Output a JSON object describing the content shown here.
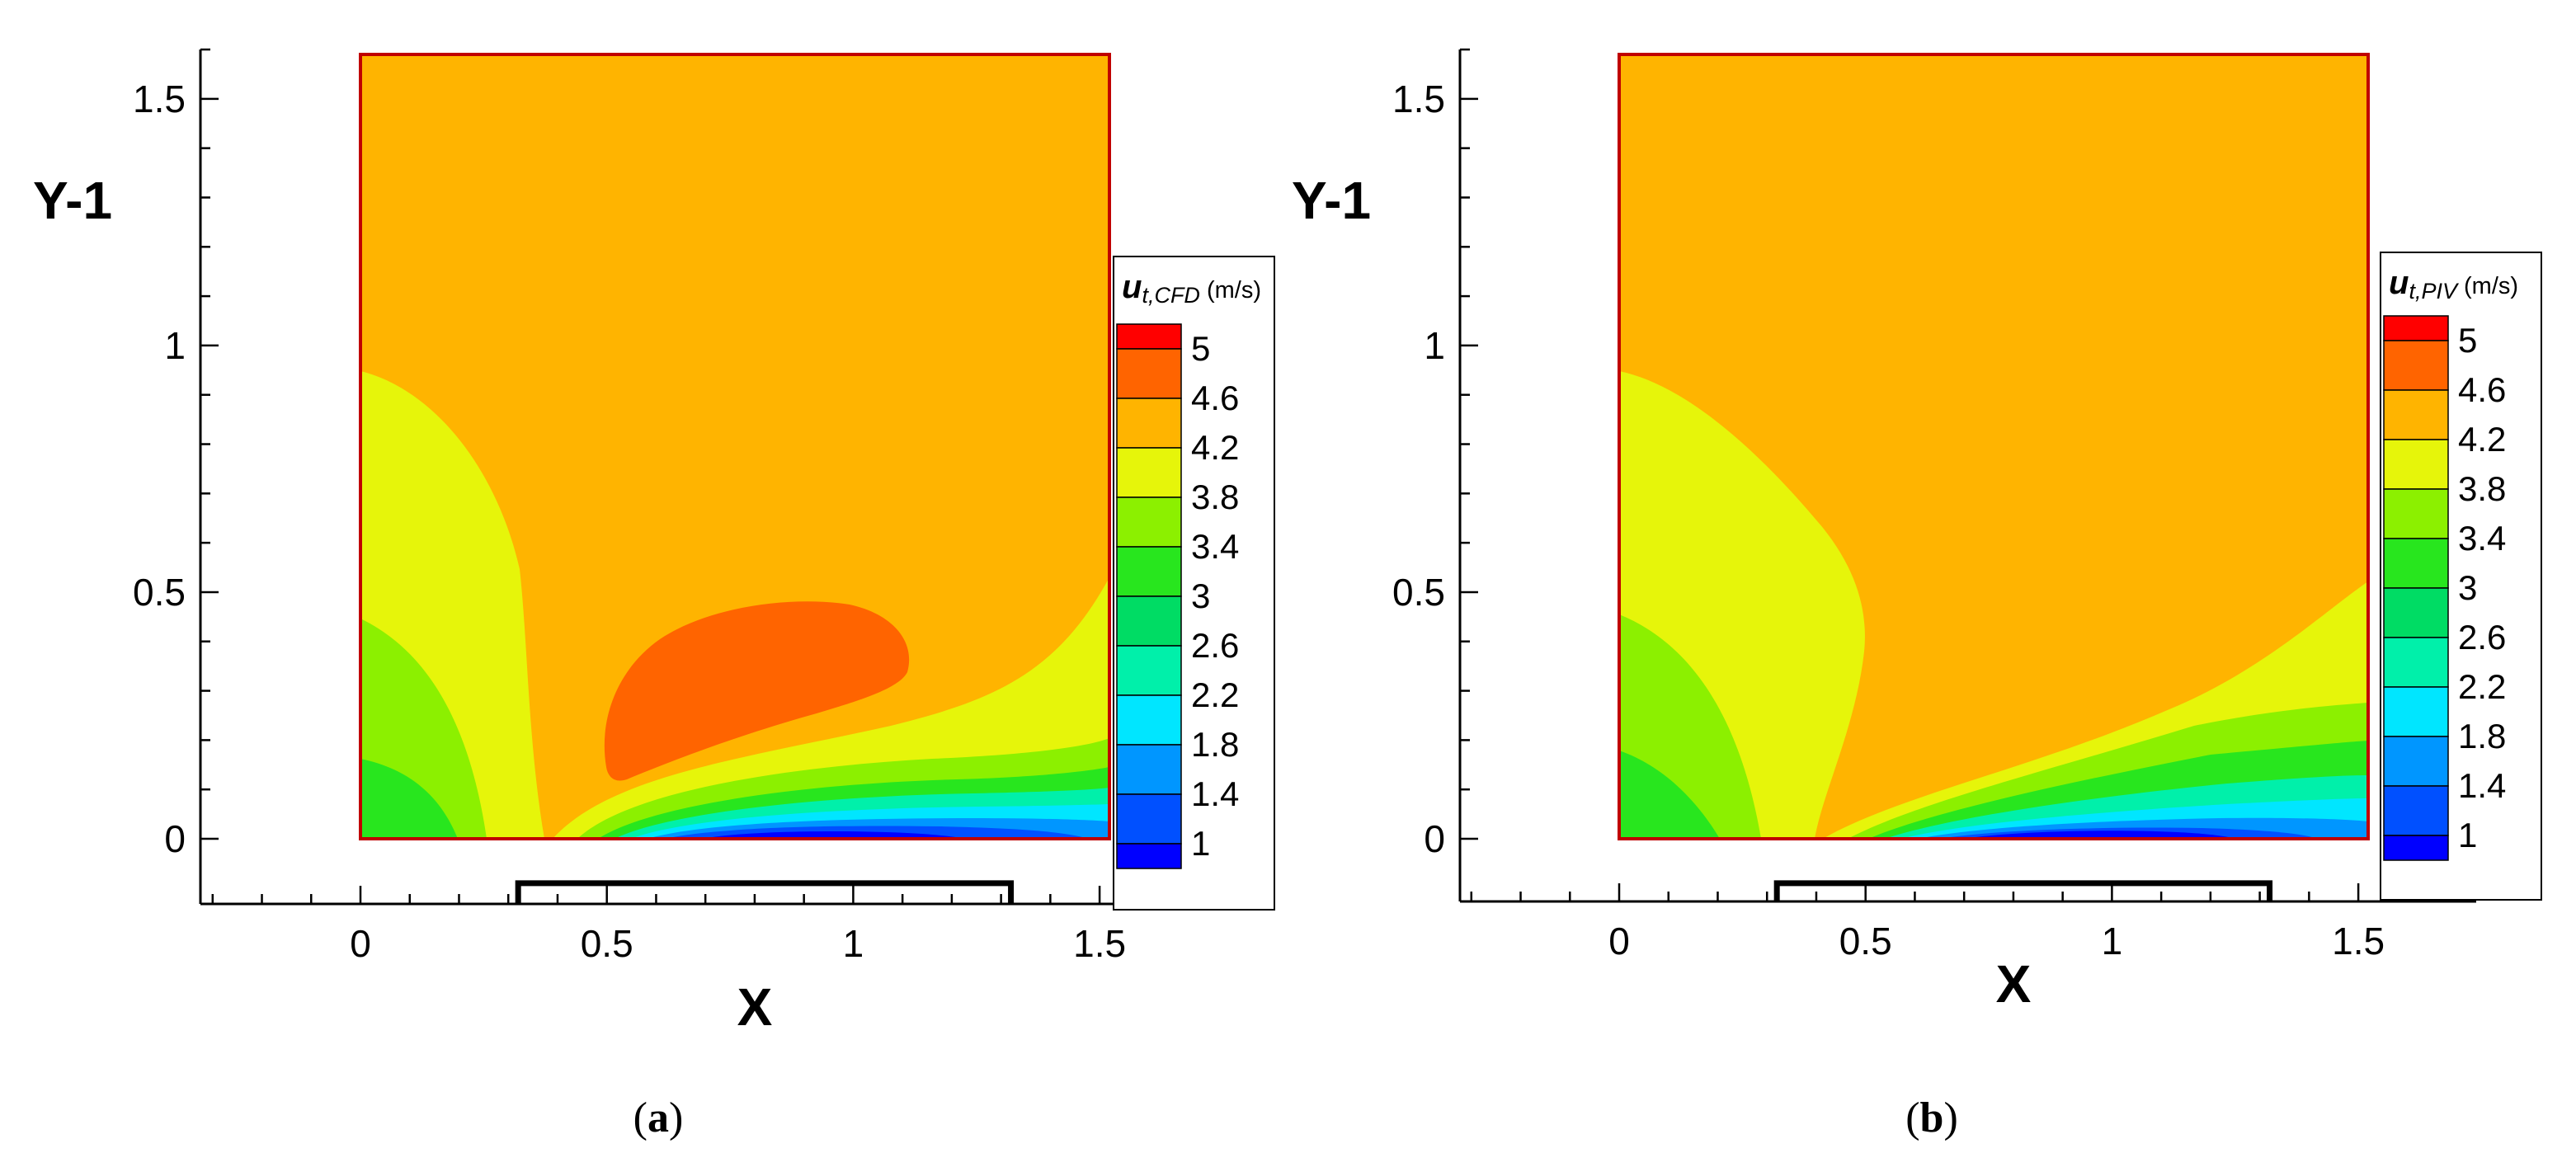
{
  "colors": {
    "band_colors": [
      "#0000ff",
      "#0050ff",
      "#0096ff",
      "#00e6ff",
      "#00f0aa",
      "#00dc64",
      "#28e61e",
      "#8cf000",
      "#e6f50a",
      "#ffb400",
      "#ff6400",
      "#ff0000"
    ],
    "frame": "#c00000"
  },
  "chart_data": [
    {
      "type": "contour",
      "panel_label": "a",
      "xlabel": "X",
      "ylabel": "Y-1",
      "xlim": [
        -0.33,
        1.75
      ],
      "ylim": [
        -0.13,
        1.6
      ],
      "xticks": [
        "0",
        "0.5",
        "1",
        "1.5"
      ],
      "yticks": [
        "0",
        "0.5",
        "1",
        "1.5"
      ],
      "field_domain": {
        "x": [
          0,
          1.52
        ],
        "y": [
          0,
          1.59
        ]
      },
      "object_outline": {
        "x": [
          0.32,
          1.32
        ],
        "y_top": -0.09
      },
      "legend": {
        "title_main": "u",
        "title_sub": "t,CFD",
        "title_unit": " (m/s)",
        "levels": [
          "5",
          "4.6",
          "4.2",
          "3.8",
          "3.4",
          "3",
          "2.6",
          "2.2",
          "1.8",
          "1.4",
          "1"
        ]
      }
    },
    {
      "type": "contour",
      "panel_label": "b",
      "xlabel": "X",
      "ylabel": "Y-1",
      "xlim": [
        -0.33,
        1.75
      ],
      "ylim": [
        -0.13,
        1.6
      ],
      "xticks": [
        "0",
        "0.5",
        "1",
        "1.5"
      ],
      "yticks": [
        "0",
        "0.5",
        "1",
        "1.5"
      ],
      "field_domain": {
        "x": [
          0,
          1.52
        ],
        "y": [
          0,
          1.59
        ]
      },
      "object_outline": {
        "x": [
          0.32,
          1.32
        ],
        "y_top": -0.09
      },
      "legend": {
        "title_main": "u",
        "title_sub": "t,PIV",
        "title_unit": " (m/s)",
        "levels": [
          "5",
          "4.6",
          "4.2",
          "3.8",
          "3.4",
          "3",
          "2.6",
          "2.2",
          "1.8",
          "1.4",
          "1"
        ]
      }
    }
  ]
}
